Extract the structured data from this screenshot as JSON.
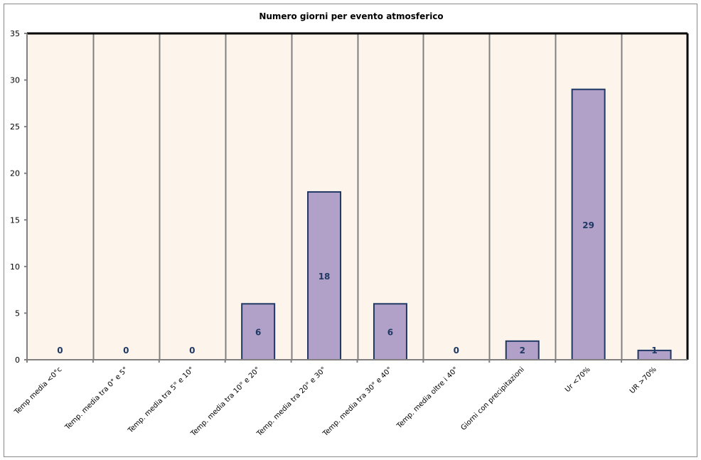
{
  "chart_data": {
    "type": "bar",
    "title": "Numero giorni per evento atmosferico",
    "xlabel": "",
    "ylabel": "",
    "categories": [
      "Temp media <0°c",
      "Temp. media tra 0° e 5°",
      "Temp. media tra 5° e 10°",
      "Temp. media tra 10° e 20°",
      "Temp. media tra 20° e 30°",
      "Temp. media tra 30° e 40°",
      "Temp. media oltre i 40°",
      "Giorni con precipitazioni",
      "Ur  <70%",
      "UR >70%"
    ],
    "values": [
      0,
      0,
      0,
      6,
      18,
      6,
      0,
      2,
      29,
      1
    ],
    "ylim": [
      0,
      35
    ],
    "yticks": [
      0,
      5,
      10,
      15,
      20,
      25,
      30,
      35
    ],
    "grid": "vertical",
    "legend": "none",
    "colors": {
      "bar_fill": "#b1a0c7",
      "bar_stroke": "#1f3864",
      "data_label": "#1f3864",
      "plot_bg": "#fdf4ec",
      "grid": "#808080"
    }
  }
}
